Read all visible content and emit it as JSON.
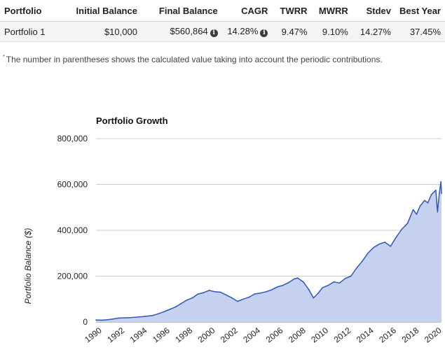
{
  "table": {
    "headers": {
      "portfolio": "Portfolio",
      "initial": "Initial Balance",
      "final": "Final Balance",
      "cagr": "CAGR",
      "twrr": "TWRR",
      "mwrr": "MWRR",
      "stdev": "Stdev",
      "best": "Best Year"
    },
    "row": {
      "portfolio": "Portfolio 1",
      "initial": "$10,000",
      "final": "$560,864",
      "cagr": "14.28%",
      "twrr": "9.47%",
      "mwrr": "9.10%",
      "stdev": "14.27%",
      "best": "37.45%"
    }
  },
  "footnote": {
    "marker": "*",
    "text": "The number in parentheses shows the calculated value taking into account the periodic contributions."
  },
  "icons": {
    "info": "info-icon",
    "info_glyph": "i"
  },
  "colors": {
    "line": "#3057b8",
    "area": "#c6d1ef",
    "grid": "#cccccc"
  },
  "chart_data": {
    "type": "area",
    "title": "Portfolio Growth",
    "ylabel": "Portfolio Balance ($)",
    "xlabel": "",
    "ylim": [
      0,
      800000
    ],
    "xlim": [
      1990,
      2020.5
    ],
    "yticks": [
      0,
      200000,
      400000,
      600000,
      800000
    ],
    "yticklabels": [
      "0",
      "200,000",
      "400,000",
      "600,000",
      "800,000"
    ],
    "xticks": [
      1990,
      1992,
      1994,
      1996,
      1998,
      2000,
      2002,
      2004,
      2006,
      2008,
      2010,
      2012,
      2014,
      2016,
      2018,
      2020
    ],
    "xticklabels": [
      "1990",
      "1992",
      "1994",
      "1996",
      "1998",
      "2000",
      "2002",
      "2004",
      "2006",
      "2008",
      "2010",
      "2012",
      "2014",
      "2016",
      "2018",
      "2020"
    ],
    "grid": true,
    "legend": "none",
    "series": [
      {
        "x": [
          1990,
          1990.5,
          1991,
          1991.5,
          1992,
          1993,
          1994,
          1995,
          1995.5,
          1996,
          1996.5,
          1997,
          1997.5,
          1998,
          1998.5,
          1999,
          1999.5,
          2000,
          2000.5,
          2001,
          2001.5,
          2002,
          2002.5,
          2003,
          2003.5,
          2004,
          2004.5,
          2005,
          2005.5,
          2006,
          2006.5,
          2007,
          2007.5,
          2007.8,
          2008.3,
          2008.8,
          2009.2,
          2009.6,
          2010,
          2010.5,
          2011,
          2011.5,
          2012,
          2012.5,
          2013,
          2013.5,
          2014,
          2014.5,
          2015,
          2015.5,
          2016,
          2016.5,
          2017,
          2017.5,
          2018,
          2018.3,
          2018.6,
          2019,
          2019.3,
          2019.6,
          2020,
          2020.15,
          2020.3,
          2020.45,
          2020.5
        ],
        "y": [
          9000,
          8000,
          10000,
          13000,
          17000,
          19000,
          23000,
          28000,
          36000,
          45000,
          55000,
          65000,
          80000,
          95000,
          105000,
          122000,
          128000,
          138000,
          132000,
          130000,
          118000,
          105000,
          90000,
          100000,
          108000,
          122000,
          126000,
          132000,
          140000,
          153000,
          160000,
          172000,
          188000,
          192000,
          175000,
          140000,
          105000,
          125000,
          150000,
          160000,
          175000,
          170000,
          190000,
          200000,
          235000,
          265000,
          300000,
          325000,
          340000,
          348000,
          330000,
          370000,
          405000,
          430000,
          490000,
          470000,
          505000,
          530000,
          520000,
          555000,
          575000,
          480000,
          560000,
          612000,
          560864
        ]
      }
    ]
  }
}
